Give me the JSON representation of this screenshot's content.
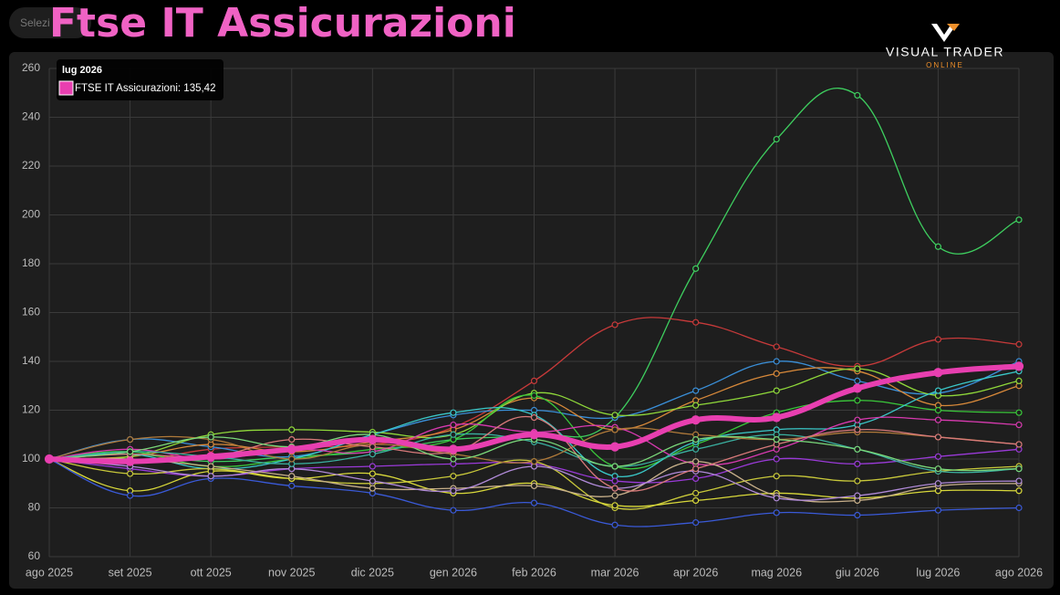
{
  "header": {
    "title": "Ftse IT Assicurazioni",
    "select_placeholder": "Selezi",
    "logo_text": "VISUAL TRADER",
    "logo_sub": "ONLINE"
  },
  "chart_data": {
    "type": "line",
    "categories": [
      "ago 2025",
      "set 2025",
      "ott 2025",
      "nov 2025",
      "dic 2025",
      "gen 2026",
      "feb 2026",
      "mar 2026",
      "apr 2026",
      "mag 2026",
      "giu 2026",
      "lug 2026",
      "ago 2026"
    ],
    "ylim": [
      60,
      260
    ],
    "yticks": [
      60,
      80,
      100,
      120,
      140,
      160,
      180,
      200,
      220,
      240,
      260
    ],
    "grid": true,
    "tooltip": {
      "text": "FTSE IT Assicurazioni: 135,42"
    },
    "series": [
      {
        "color": "#3ecf5f",
        "values": [
          100,
          102,
          99,
          101,
          103,
          108,
          110,
          117,
          178,
          231,
          249,
          187,
          198
        ]
      },
      {
        "color": "#c83a3a",
        "values": [
          100,
          99,
          104,
          105,
          106,
          113,
          132,
          155,
          156,
          146,
          138,
          149,
          147
        ]
      },
      {
        "color": "#3a8fd8",
        "values": [
          100,
          108,
          105,
          101,
          110,
          118,
          120,
          117,
          128,
          140,
          132,
          127,
          140
        ]
      },
      {
        "color": "#d8893a",
        "values": [
          100,
          101,
          106,
          103,
          107,
          112,
          125,
          112,
          124,
          135,
          136,
          122,
          130
        ]
      },
      {
        "color": "#8fd83a",
        "values": [
          100,
          101,
          110,
          112,
          111,
          110,
          127,
          118,
          122,
          128,
          137,
          126,
          132
        ]
      },
      {
        "color": "#3ac83a",
        "values": [
          100,
          103,
          97,
          100,
          104,
          108,
          126,
          97,
          106,
          119,
          124,
          120,
          119
        ]
      },
      {
        "color": "#3ac8c8",
        "values": [
          100,
          102,
          96,
          100,
          110,
          119,
          118,
          93,
          107,
          112,
          114,
          128,
          136
        ]
      },
      {
        "color": "#9a3ad8",
        "values": [
          100,
          96,
          93,
          96,
          97,
          98,
          98,
          91,
          92,
          100,
          98,
          101,
          104
        ]
      },
      {
        "color": "#d83ab0",
        "values": [
          100,
          104,
          100,
          104,
          103,
          114,
          111,
          113,
          98,
          104,
          116,
          116,
          114
        ]
      },
      {
        "color": "#c8c83a",
        "values": [
          100,
          94,
          96,
          92,
          90,
          93,
          99,
          80,
          86,
          93,
          91,
          95,
          97
        ]
      },
      {
        "color": "#d8d83a",
        "values": [
          100,
          87,
          95,
          92,
          94,
          86,
          90,
          81,
          83,
          86,
          84,
          87,
          87
        ]
      },
      {
        "color": "#3a5ad8",
        "values": [
          100,
          85,
          92,
          89,
          86,
          79,
          82,
          73,
          74,
          78,
          77,
          79,
          80
        ]
      },
      {
        "color": "#c8b08a",
        "values": [
          100,
          100,
          97,
          93,
          88,
          88,
          89,
          85,
          99,
          85,
          83,
          89,
          90
        ]
      },
      {
        "color": "#b08ad8",
        "values": [
          100,
          97,
          93,
          96,
          91,
          87,
          97,
          88,
          95,
          84,
          85,
          90,
          91
        ]
      },
      {
        "color": "#3ab0a0",
        "values": [
          100,
          103,
          101,
          98,
          102,
          110,
          107,
          97,
          104,
          110,
          104,
          95,
          96
        ]
      },
      {
        "color": "#b07a3a",
        "values": [
          100,
          108,
          108,
          100,
          106,
          102,
          99,
          112,
          110,
          108,
          111,
          109,
          106
        ]
      },
      {
        "color": "#d87a7a",
        "values": [
          100,
          102,
          101,
          108,
          105,
          103,
          117,
          88,
          96,
          106,
          112,
          109,
          106
        ]
      },
      {
        "color": "#7ad87a",
        "values": [
          100,
          103,
          109,
          105,
          110,
          100,
          108,
          97,
          108,
          108,
          104,
          96,
          96
        ]
      },
      {
        "name": "FTSE IT Assicurazioni",
        "color": "#e83fb0",
        "highlight": true,
        "values": [
          100,
          99,
          101,
          104,
          108,
          104,
          110,
          105,
          116,
          117,
          129,
          135.42,
          138
        ]
      }
    ]
  }
}
